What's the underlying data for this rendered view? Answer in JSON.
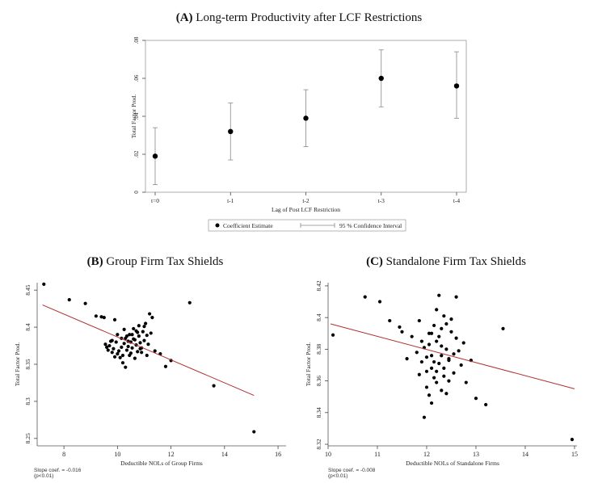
{
  "chart_data": [
    {
      "type": "scatter",
      "title_letter": "(A)",
      "title_text": "Long-term Productivity after LCF Restrictions",
      "xlabel": "Lag of Post LCF Restriction",
      "ylabel": "Total Factor Prod.",
      "categories": [
        "t=0",
        "t-1",
        "t-2",
        "t-3",
        "t-4"
      ],
      "ylim": [
        0,
        0.08
      ],
      "yticks": [
        "0",
        ".02",
        ".04",
        ".06",
        ".08"
      ],
      "ytick_values": [
        0,
        0.02,
        0.04,
        0.06,
        0.08
      ],
      "values": [
        0.019,
        0.032,
        0.039,
        0.06,
        0.056
      ],
      "ci_low": [
        0.004,
        0.017,
        0.024,
        0.045,
        0.039
      ],
      "ci_high": [
        0.034,
        0.047,
        0.054,
        0.075,
        0.074
      ],
      "legend": [
        "Coefficient Estimate",
        "95 % Confidence Interval"
      ],
      "legend_position": "bottom",
      "grid": false
    },
    {
      "type": "scatter",
      "title_letter": "(B)",
      "title_text": "Group Firm Tax Shields",
      "xlabel": "Deductible NOLs of Group Firms",
      "ylabel": "Total Factor Prod.",
      "xlim": [
        7,
        16.3
      ],
      "ylim": [
        8.24,
        8.46
      ],
      "xticks": [
        "8",
        "10",
        "12",
        "14",
        "16"
      ],
      "xtick_values": [
        8,
        10,
        12,
        14,
        16
      ],
      "yticks": [
        "8.25",
        "8.3",
        "8.35",
        "8.4",
        "8.45"
      ],
      "ytick_values": [
        8.25,
        8.3,
        8.35,
        8.4,
        8.45
      ],
      "fit_line": {
        "x": [
          7.2,
          15.1
        ],
        "y": [
          8.43,
          8.308
        ]
      },
      "slope_note": [
        "Slope coef. = -0.016",
        "(p<0.01)"
      ],
      "points": [
        [
          7.25,
          8.458
        ],
        [
          8.2,
          8.437
        ],
        [
          8.8,
          8.432
        ],
        [
          9.2,
          8.415
        ],
        [
          9.4,
          8.414
        ],
        [
          9.5,
          8.413
        ],
        [
          9.9,
          8.41
        ],
        [
          9.55,
          8.377
        ],
        [
          9.6,
          8.373
        ],
        [
          9.65,
          8.369
        ],
        [
          9.7,
          8.375
        ],
        [
          9.75,
          8.381
        ],
        [
          9.8,
          8.366
        ],
        [
          9.85,
          8.371
        ],
        [
          9.9,
          8.36
        ],
        [
          9.95,
          8.38
        ],
        [
          10.0,
          8.39
        ],
        [
          10.05,
          8.368
        ],
        [
          10.1,
          8.359
        ],
        [
          10.15,
          8.373
        ],
        [
          10.2,
          8.362
        ],
        [
          10.25,
          8.378
        ],
        [
          10.3,
          8.385
        ],
        [
          10.35,
          8.369
        ],
        [
          10.4,
          8.374
        ],
        [
          10.45,
          8.39
        ],
        [
          10.5,
          8.38
        ],
        [
          10.55,
          8.372
        ],
        [
          10.6,
          8.398
        ],
        [
          10.65,
          8.383
        ],
        [
          10.7,
          8.376
        ],
        [
          10.75,
          8.367
        ],
        [
          10.8,
          8.388
        ],
        [
          10.85,
          8.379
        ],
        [
          10.9,
          8.372
        ],
        [
          10.95,
          8.394
        ],
        [
          11.0,
          8.382
        ],
        [
          11.05,
          8.405
        ],
        [
          11.1,
          8.389
        ],
        [
          11.15,
          8.377
        ],
        [
          11.2,
          8.418
        ],
        [
          11.25,
          8.392
        ],
        [
          10.2,
          8.352
        ],
        [
          10.3,
          8.346
        ],
        [
          10.5,
          8.365
        ],
        [
          10.6,
          8.384
        ],
        [
          10.7,
          8.395
        ],
        [
          10.8,
          8.402
        ],
        [
          10.9,
          8.366
        ],
        [
          10.4,
          8.381
        ],
        [
          10.45,
          8.362
        ],
        [
          10.55,
          8.39
        ],
        [
          10.65,
          8.358
        ],
        [
          10.75,
          8.393
        ],
        [
          10.85,
          8.371
        ],
        [
          11.0,
          8.401
        ],
        [
          11.1,
          8.362
        ],
        [
          11.3,
          8.413
        ],
        [
          11.4,
          8.368
        ],
        [
          11.6,
          8.364
        ],
        [
          11.8,
          8.347
        ],
        [
          12.0,
          8.355
        ],
        [
          12.7,
          8.433
        ],
        [
          10.35,
          8.388
        ],
        [
          10.15,
          8.385
        ],
        [
          10.0,
          8.364
        ],
        [
          9.8,
          8.382
        ],
        [
          10.25,
          8.397
        ],
        [
          13.6,
          8.321
        ],
        [
          15.1,
          8.259
        ]
      ],
      "grid": false
    },
    {
      "type": "scatter",
      "title_letter": "(C)",
      "title_text": "Standalone Firm Tax Shields",
      "xlabel": "Deductible NOLs of Standalone Firms",
      "ylabel": "Total Factor Prod.",
      "xlim": [
        10,
        15.05
      ],
      "ylim": [
        8.319,
        8.422
      ],
      "xticks": [
        "10",
        "11",
        "12",
        "13",
        "14",
        "15"
      ],
      "xtick_values": [
        10,
        11,
        12,
        13,
        14,
        15
      ],
      "yticks": [
        "8.32",
        "8.34",
        "8.36",
        "8.38",
        "8.4",
        "8.42"
      ],
      "ytick_values": [
        8.32,
        8.34,
        8.36,
        8.38,
        8.4,
        8.42
      ],
      "fit_line": {
        "x": [
          10.05,
          15.0
        ],
        "y": [
          8.396,
          8.355
        ]
      },
      "slope_note": [
        "Slope coef. = -0.008",
        "(p<0.01)"
      ],
      "points": [
        [
          10.1,
          8.389
        ],
        [
          10.75,
          8.413
        ],
        [
          11.05,
          8.41
        ],
        [
          11.5,
          8.391
        ],
        [
          11.25,
          8.398
        ],
        [
          11.45,
          8.394
        ],
        [
          11.6,
          8.374
        ],
        [
          11.7,
          8.388
        ],
        [
          11.8,
          8.378
        ],
        [
          11.85,
          8.398
        ],
        [
          11.9,
          8.372
        ],
        [
          11.95,
          8.381
        ],
        [
          12.0,
          8.366
        ],
        [
          12.05,
          8.39
        ],
        [
          12.1,
          8.376
        ],
        [
          12.15,
          8.362
        ],
        [
          12.2,
          8.385
        ],
        [
          12.25,
          8.371
        ],
        [
          12.3,
          8.393
        ],
        [
          12.35,
          8.368
        ],
        [
          12.4,
          8.38
        ],
        [
          12.45,
          8.374
        ],
        [
          12.5,
          8.399
        ],
        [
          12.55,
          8.365
        ],
        [
          12.6,
          8.387
        ],
        [
          12.65,
          8.379
        ],
        [
          12.7,
          8.37
        ],
        [
          12.75,
          8.384
        ],
        [
          12.0,
          8.356
        ],
        [
          12.05,
          8.351
        ],
        [
          12.1,
          8.346
        ],
        [
          11.95,
          8.337
        ],
        [
          12.15,
          8.395
        ],
        [
          12.2,
          8.405
        ],
        [
          12.25,
          8.414
        ],
        [
          12.3,
          8.382
        ],
        [
          12.35,
          8.363
        ],
        [
          12.4,
          8.352
        ],
        [
          12.45,
          8.373
        ],
        [
          12.5,
          8.391
        ],
        [
          12.05,
          8.383
        ],
        [
          12.15,
          8.372
        ],
        [
          12.25,
          8.388
        ],
        [
          12.1,
          8.368
        ],
        [
          12.2,
          8.359
        ],
        [
          12.3,
          8.376
        ],
        [
          11.9,
          8.385
        ],
        [
          11.85,
          8.364
        ],
        [
          12.4,
          8.396
        ],
        [
          12.55,
          8.377
        ],
        [
          12.6,
          8.413
        ],
        [
          12.8,
          8.359
        ],
        [
          12.9,
          8.373
        ],
        [
          13.0,
          8.349
        ],
        [
          13.2,
          8.345
        ],
        [
          13.55,
          8.393
        ],
        [
          14.95,
          8.323
        ],
        [
          12.35,
          8.401
        ],
        [
          12.45,
          8.36
        ],
        [
          12.0,
          8.375
        ],
        [
          12.1,
          8.39
        ],
        [
          12.2,
          8.366
        ],
        [
          12.3,
          8.354
        ]
      ],
      "grid": false
    }
  ]
}
